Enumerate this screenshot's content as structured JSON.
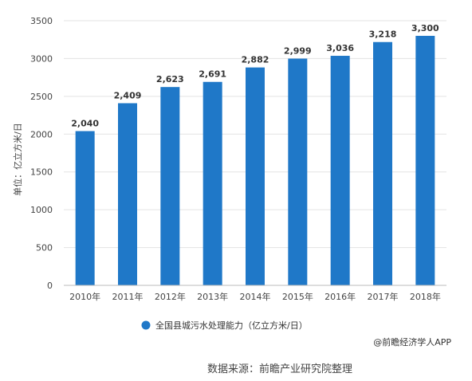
{
  "chart_data": {
    "type": "bar",
    "categories": [
      "2010年",
      "2011年",
      "2012年",
      "2013年",
      "2014年",
      "2015年",
      "2016年",
      "2017年",
      "2018年"
    ],
    "values": [
      2040,
      2409,
      2623,
      2691,
      2882,
      2999,
      3036,
      3218,
      3300
    ],
    "value_labels": [
      "2,040",
      "2,409",
      "2,623",
      "2,691",
      "2,882",
      "2,999",
      "3,036",
      "3,218",
      "3,300"
    ],
    "ylabel": "单位：亿立方米/日",
    "ylim": [
      0,
      3500
    ],
    "yticks": [
      "0",
      "500",
      "1000",
      "1500",
      "2000",
      "2500",
      "3000",
      "3500"
    ],
    "ytick_values": [
      0,
      500,
      1000,
      1500,
      2000,
      2500,
      3000,
      3500
    ],
    "grid": true,
    "legend_position": "bottom",
    "series": [
      {
        "name": "全国县城污水处理能力（亿立方米/日）",
        "color": "#1f78c8"
      }
    ],
    "bar_color": "#1f78c8"
  },
  "credit": "@前瞻经济学人APP",
  "source": "数据来源：前瞻产业研究院整理"
}
